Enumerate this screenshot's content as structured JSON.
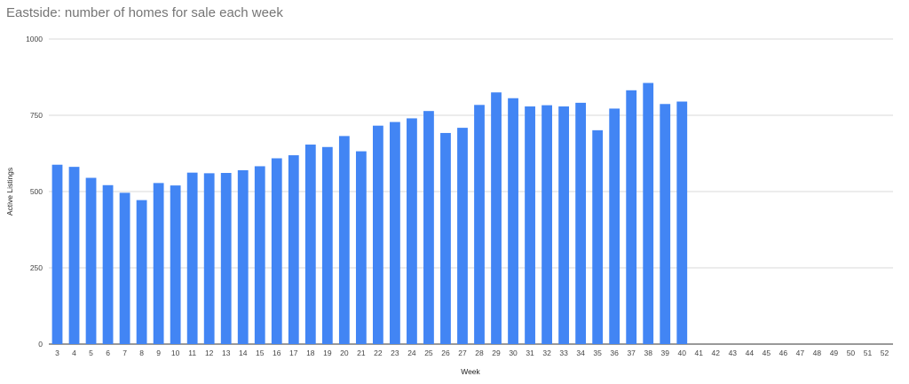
{
  "chart_data": {
    "type": "bar",
    "title": "Eastside: number of homes for sale each week",
    "xlabel": "Week",
    "ylabel": "Active Listings",
    "ylim": [
      0,
      1000
    ],
    "yticks": [
      "0",
      "250",
      "500",
      "750",
      "1000"
    ],
    "grid": true,
    "legend": "none",
    "bar_color": "#4285f4",
    "categories": [
      "3",
      "4",
      "5",
      "6",
      "7",
      "8",
      "9",
      "10",
      "11",
      "12",
      "13",
      "14",
      "15",
      "16",
      "17",
      "18",
      "19",
      "20",
      "21",
      "22",
      "23",
      "24",
      "25",
      "26",
      "27",
      "28",
      "29",
      "30",
      "31",
      "32",
      "33",
      "34",
      "35",
      "36",
      "37",
      "38",
      "39",
      "40",
      "41",
      "42",
      "43",
      "44",
      "45",
      "46",
      "47",
      "48",
      "49",
      "50",
      "51",
      "52"
    ],
    "values": [
      588,
      581,
      545,
      521,
      496,
      472,
      528,
      520,
      562,
      560,
      561,
      570,
      583,
      609,
      619,
      654,
      646,
      682,
      632,
      716,
      728,
      740,
      764,
      692,
      709,
      784,
      825,
      806,
      779,
      783,
      779,
      791,
      701,
      772,
      832,
      856,
      787,
      795,
      null,
      null,
      null,
      null,
      null,
      null,
      null,
      null,
      null,
      null,
      null,
      null
    ]
  }
}
